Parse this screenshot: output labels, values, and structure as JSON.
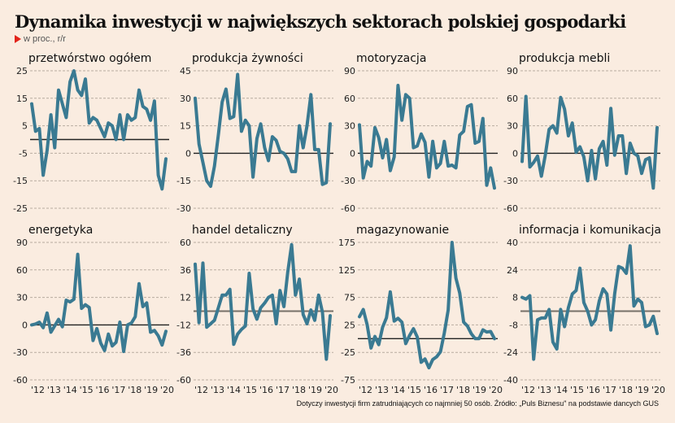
{
  "header": {
    "title": "Dynamika inwestycji w największych sektorach polskiej gospodarki",
    "subtitle": "w proc., r/r"
  },
  "footnote": "Dotyczy inwestycji firm zatrudniających co najmniej 50 osób. Źródło: „Puls Biznesu\" na podstawie dancych GUS",
  "colors": {
    "line": "#3a7a92",
    "zero": "#222222",
    "zero_alt": "#777068",
    "grid": "#b8aca0",
    "marker": "#e2231a",
    "background": "#faece0"
  },
  "chart_data": [
    {
      "type": "line",
      "title": "przetwórstwo ogółem",
      "yticks": [
        "25",
        "15",
        "5",
        "-5",
        "-15",
        "-25"
      ],
      "ylim": [
        -25,
        25
      ],
      "zero": 0,
      "xlabels": [],
      "values": [
        13,
        3,
        4,
        -13,
        -4,
        9,
        -3,
        18,
        13,
        8,
        21,
        25,
        18,
        16,
        22,
        6,
        8,
        7,
        4,
        1,
        6,
        5,
        0,
        9,
        0,
        9,
        7,
        8,
        18,
        12,
        11,
        7,
        14,
        -13,
        -18,
        -7
      ]
    },
    {
      "type": "line",
      "title": "produkcja żywności",
      "yticks": [
        "45",
        "30",
        "15",
        "0",
        "-15",
        "-30"
      ],
      "ylim": [
        -30,
        45
      ],
      "zero": 0,
      "xlabels": [],
      "values": [
        30,
        5,
        -5,
        -15,
        -18,
        -7,
        10,
        28,
        35,
        19,
        20,
        43,
        12,
        18,
        15,
        -13,
        8,
        16,
        3,
        -4,
        9,
        7,
        1,
        0,
        -3,
        -10,
        -10,
        15,
        3,
        15,
        32,
        2,
        2,
        -17,
        -16,
        16
      ]
    },
    {
      "type": "line",
      "title": "motoryzacja",
      "yticks": [
        "90",
        "60",
        "30",
        "0",
        "-30",
        "-60"
      ],
      "ylim": [
        -60,
        90
      ],
      "zero": 0,
      "xlabels": [],
      "values": [
        31,
        -27,
        -9,
        -14,
        28,
        17,
        -5,
        15,
        -19,
        -4,
        74,
        36,
        64,
        60,
        6,
        8,
        21,
        12,
        -26,
        13,
        -16,
        -11,
        13,
        -14,
        -13,
        -16,
        20,
        24,
        51,
        53,
        11,
        13,
        38,
        -35,
        -16,
        -38
      ]
    },
    {
      "type": "line",
      "title": "produkcja mebli",
      "yticks": [
        "90",
        "60",
        "30",
        "0",
        "-30",
        "-60"
      ],
      "ylim": [
        -60,
        90
      ],
      "zero": 0,
      "xlabels": [],
      "values": [
        -9,
        62,
        -15,
        -10,
        -3,
        -25,
        -2,
        26,
        30,
        22,
        61,
        48,
        19,
        33,
        1,
        7,
        -4,
        -30,
        3,
        -28,
        5,
        13,
        -13,
        49,
        -2,
        19,
        19,
        -22,
        11,
        0,
        -3,
        -22,
        -7,
        -5,
        -38,
        28
      ]
    },
    {
      "type": "line",
      "title": "energetyka",
      "yticks": [
        "90",
        "60",
        "30",
        "0",
        "-30",
        "-60"
      ],
      "ylim": [
        -60,
        90
      ],
      "zero": 0,
      "xlabels": [
        "'12",
        "'13",
        "'14",
        "'15",
        "'16",
        "'17",
        "'18",
        "'19",
        "'20"
      ],
      "values": [
        0,
        1,
        3,
        -3,
        13,
        -8,
        -1,
        6,
        -2,
        27,
        25,
        28,
        77,
        18,
        22,
        19,
        -17,
        -4,
        -20,
        -28,
        -10,
        -23,
        -19,
        3,
        -29,
        0,
        2,
        9,
        45,
        20,
        24,
        -8,
        -6,
        -12,
        -22,
        -7
      ]
    },
    {
      "type": "line",
      "title": "handel detaliczny",
      "yticks": [
        "60",
        "36",
        "12",
        "-12",
        "-36",
        "-60"
      ],
      "ylim": [
        -60,
        60
      ],
      "zero": 0,
      "xlabels": [
        "'12",
        "'13",
        "'14",
        "'15",
        "'16",
        "'17",
        "'18",
        "'19",
        "'20"
      ],
      "values": [
        41,
        -10,
        42,
        -14,
        -11,
        -8,
        3,
        14,
        14,
        19,
        -29,
        -20,
        -16,
        -13,
        33,
        2,
        -7,
        3,
        7,
        12,
        14,
        -11,
        18,
        4,
        34,
        58,
        14,
        28,
        -3,
        -11,
        1,
        -8,
        14,
        -1,
        -42,
        -4
      ]
    },
    {
      "type": "line",
      "title": "magazynowanie",
      "yticks": [
        "175",
        "125",
        "75",
        "25",
        "-25",
        "-75"
      ],
      "ylim": [
        -75,
        175
      ],
      "zero": 0,
      "xlabels": [
        "'12",
        "'13",
        "'14",
        "'15",
        "'16",
        "'17",
        "'18",
        "'19",
        "'20"
      ],
      "values": [
        40,
        53,
        25,
        -17,
        4,
        -11,
        21,
        38,
        85,
        32,
        37,
        30,
        -9,
        6,
        18,
        3,
        -43,
        -37,
        -53,
        -38,
        -33,
        -24,
        10,
        52,
        175,
        110,
        83,
        30,
        23,
        9,
        0,
        0,
        16,
        12,
        13,
        0
      ]
    },
    {
      "type": "line",
      "title": "informacja i komunikacja",
      "yticks": [
        "40",
        "24",
        "8",
        "-8",
        "-24",
        "-40"
      ],
      "ylim": [
        -40,
        40
      ],
      "zero": 0,
      "xlabels": [
        "'12",
        "'13",
        "'14",
        "'15",
        "'16",
        "'17",
        "'18",
        "'19",
        "'20"
      ],
      "values": [
        8,
        7,
        9,
        -28,
        -5,
        -4,
        -4,
        1,
        -18,
        -22,
        1,
        -9,
        2,
        10,
        12,
        25,
        5,
        0,
        -8,
        -5,
        6,
        13,
        10,
        -11,
        10,
        26,
        25,
        22,
        38,
        3,
        7,
        5,
        -9,
        -8,
        -3,
        -13
      ]
    }
  ]
}
